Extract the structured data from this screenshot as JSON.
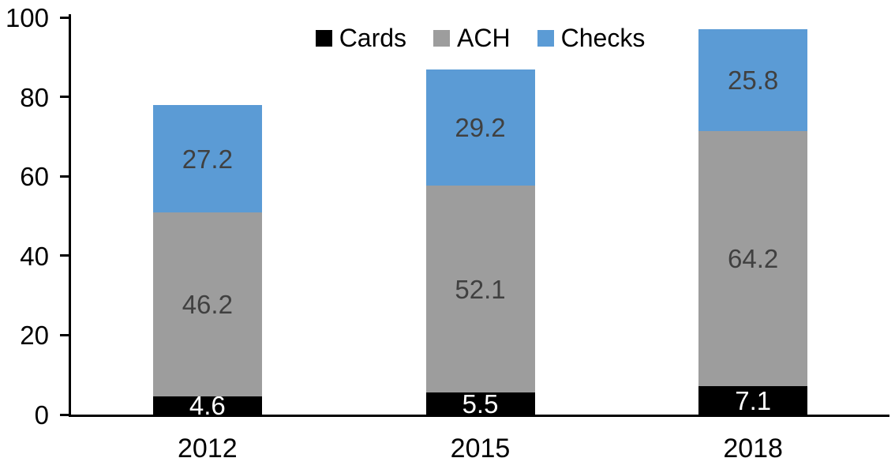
{
  "chart_data": {
    "type": "bar",
    "stacked": true,
    "title": "",
    "xlabel": "",
    "ylabel": "",
    "categories": [
      "2012",
      "2015",
      "2018"
    ],
    "series": [
      {
        "name": "Cards",
        "color": "#000000",
        "label_color": "#ffffff",
        "values": [
          4.6,
          5.5,
          7.1
        ]
      },
      {
        "name": "ACH",
        "color": "#9d9d9d",
        "label_color": "#404040",
        "values": [
          46.2,
          52.1,
          64.2
        ]
      },
      {
        "name": "Checks",
        "color": "#5b9bd5",
        "label_color": "#404040",
        "values": [
          27.2,
          29.2,
          25.8
        ]
      }
    ],
    "totals": [
      78.0,
      86.8,
      97.1
    ],
    "ylim": [
      0,
      100
    ],
    "yticks": [
      0,
      20,
      40,
      60,
      80,
      100
    ],
    "grid": false,
    "legend_position": "top",
    "axis_color": "#000000"
  }
}
